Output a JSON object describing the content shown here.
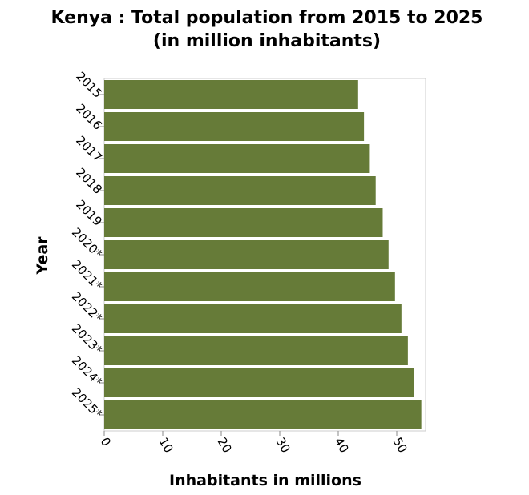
{
  "chart_data": {
    "type": "bar",
    "orientation": "horizontal",
    "title_line1": "Kenya : Total population from 2015 to 2025",
    "title_line2": "(in million inhabitants)",
    "xlabel": "Inhabitants in millions",
    "ylabel": "Year",
    "xlim": [
      0,
      55
    ],
    "xticks": [
      0,
      10,
      20,
      30,
      40,
      50
    ],
    "grid": false,
    "categories": [
      "2015",
      "2016",
      "2017",
      "2018",
      "2019",
      "2020*",
      "2021*",
      "2022*",
      "2023*",
      "2024*",
      "2025*"
    ],
    "values": [
      43.4,
      44.4,
      45.4,
      46.4,
      47.6,
      48.6,
      49.7,
      50.8,
      51.9,
      53.0,
      54.2
    ],
    "bar_color": "#667b38"
  }
}
